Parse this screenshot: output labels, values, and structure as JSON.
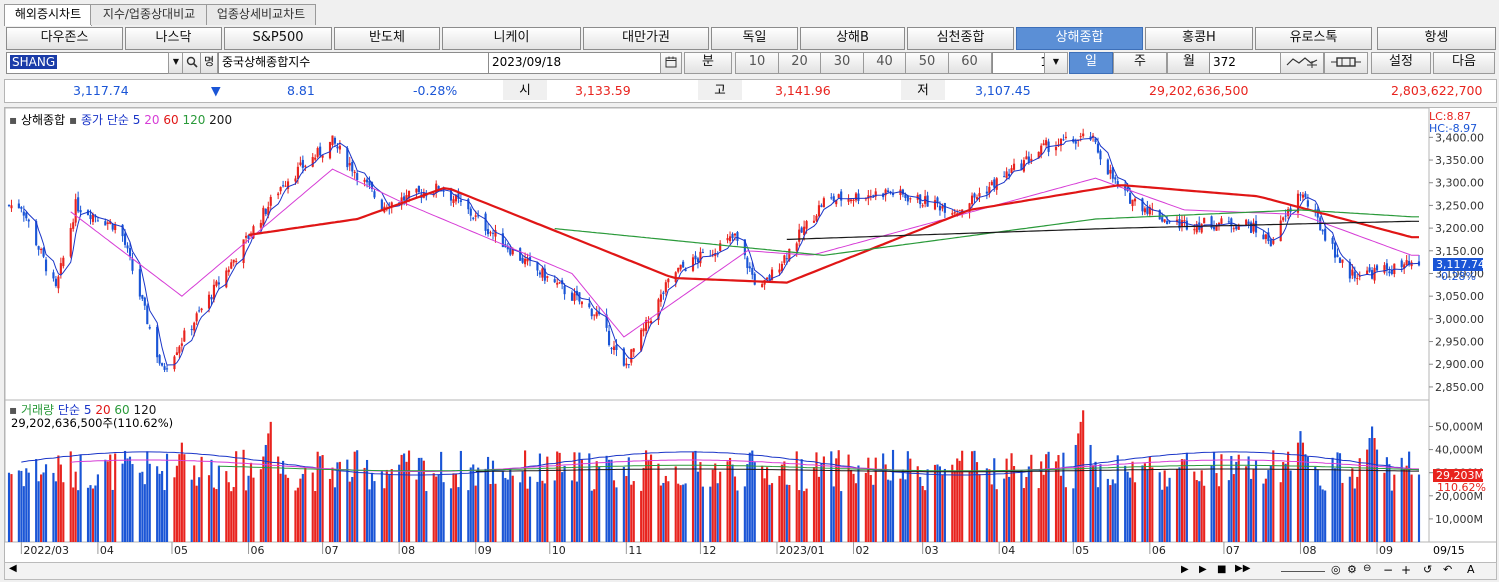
{
  "tabs": [
    "해외증시차트",
    "지수/업종상대비교",
    "업종상세비교차트"
  ],
  "index_buttons": [
    "다우존스",
    "나스닥",
    "S&P500",
    "반도체",
    "니케이",
    "대만가권",
    "독일",
    "상해B",
    "심천종합",
    "상해종합",
    "홍콩H",
    "유로스톡",
    "항셍"
  ],
  "active_index": "상해종합",
  "toolbar": {
    "symbol": "SHANG",
    "name_icon_label": "명",
    "name": "중국상해종합지수",
    "date": "2023/09/18",
    "period_unit_label": "분",
    "minute_options": [
      "10",
      "20",
      "30",
      "40",
      "50",
      "60"
    ],
    "minute_count": "1",
    "day_label": "일",
    "week_label": "주",
    "month_label": "월",
    "bar_count": "372",
    "settings_label": "설정",
    "next_label": "다음"
  },
  "quote": {
    "price": "3,117.74",
    "change_arrow": "▼",
    "change": "8.81",
    "change_pct": "-0.28%",
    "open_label": "시",
    "open": "3,133.59",
    "high_label": "고",
    "high": "3,141.96",
    "low_label": "저",
    "low": "3,107.45",
    "volume": "29,202,636,500",
    "amount": "2,803,622,700"
  },
  "price_legend": {
    "series_name": "상해종합",
    "ma_label": "종가 단순",
    "ma_periods": [
      "5",
      "20",
      "60",
      "120",
      "200"
    ]
  },
  "price_overlay": {
    "lc": "LC:8.87",
    "hc": "HC:-8.97",
    "last": "3,117.74",
    "last_pct": "-0.28%"
  },
  "volume_legend": {
    "series_name": "거래량",
    "ma_label": "단순",
    "ma_periods": [
      "5",
      "20",
      "60",
      "120"
    ],
    "info": "29,202,636,500주(110.62%)"
  },
  "volume_overlay": {
    "last": "29,203M",
    "last_pct": "110.62%"
  },
  "colors": {
    "up": "#e8231e",
    "down": "#1a55d6",
    "ma5": "#1a35c8",
    "ma20": "#d63cd6",
    "ma60": "#e01616",
    "ma120": "#2a9a3a",
    "ma200": "#1a1a1a",
    "active": "#5b8fd6"
  },
  "chart_data": {
    "type": "candlestick",
    "price_axis": {
      "ticks": [
        "3,400.00",
        "3,350.00",
        "3,300.00",
        "3,250.00",
        "3,200.00",
        "3,150.00",
        "3,100.00",
        "3,050.00",
        "3,000.00",
        "2,950.00",
        "2,900.00",
        "2,850.00"
      ],
      "range": [
        2830,
        3425
      ]
    },
    "volume_axis": {
      "ticks": [
        "50,000M",
        "40,000M",
        "30,000M",
        "20,000M",
        "10,000M"
      ],
      "range": [
        0,
        58000
      ]
    },
    "x_labels": [
      "2022/03",
      "04",
      "05",
      "06",
      "07",
      "08",
      "09",
      "10",
      "11",
      "12",
      "2023/01",
      "02",
      "03",
      "04",
      "05",
      "06",
      "07",
      "08",
      "09"
    ],
    "date_label": "09/15",
    "close_anchors": [
      [
        "2022-03-01",
        3250
      ],
      [
        "2022-03-15",
        3063
      ],
      [
        "2022-03-23",
        3250
      ],
      [
        "2022-04-10",
        3200
      ],
      [
        "2022-04-27",
        2886
      ],
      [
        "2022-05-20",
        3080
      ],
      [
        "2022-06-15",
        3300
      ],
      [
        "2022-07-05",
        3390
      ],
      [
        "2022-07-25",
        3250
      ],
      [
        "2022-08-18",
        3290
      ],
      [
        "2022-09-20",
        3130
      ],
      [
        "2022-10-20",
        3010
      ],
      [
        "2022-10-31",
        2890
      ],
      [
        "2022-11-20",
        3100
      ],
      [
        "2022-12-15",
        3180
      ],
      [
        "2022-12-25",
        3060
      ],
      [
        "2023-01-20",
        3260
      ],
      [
        "2023-02-15",
        3280
      ],
      [
        "2023-03-15",
        3240
      ],
      [
        "2023-04-20",
        3380
      ],
      [
        "2023-05-08",
        3400
      ],
      [
        "2023-05-20",
        3280
      ],
      [
        "2023-06-10",
        3210
      ],
      [
        "2023-07-10",
        3210
      ],
      [
        "2023-07-20",
        3170
      ],
      [
        "2023-08-01",
        3280
      ],
      [
        "2023-08-20",
        3100
      ],
      [
        "2023-08-28",
        3100
      ],
      [
        "2023-09-15",
        3117.74
      ]
    ],
    "ma_anchors": {
      "ma20": [
        [
          "2022-03-20",
          3240
        ],
        [
          "2022-05-05",
          3050
        ],
        [
          "2022-07-05",
          3330
        ],
        [
          "2022-08-01",
          3260
        ],
        [
          "2022-10-10",
          3100
        ],
        [
          "2022-10-31",
          2960
        ],
        [
          "2022-12-20",
          3150
        ],
        [
          "2023-01-15",
          3140
        ],
        [
          "2023-05-10",
          3310
        ],
        [
          "2023-06-15",
          3240
        ],
        [
          "2023-08-01",
          3230
        ],
        [
          "2023-09-15",
          3140
        ]
      ],
      "ma60": [
        [
          "2022-06-01",
          3185
        ],
        [
          "2022-07-15",
          3220
        ],
        [
          "2022-08-20",
          3290
        ],
        [
          "2022-11-20",
          3090
        ],
        [
          "2023-01-05",
          3080
        ],
        [
          "2023-03-20",
          3240
        ],
        [
          "2023-05-20",
          3295
        ],
        [
          "2023-07-15",
          3270
        ],
        [
          "2023-09-15",
          3180
        ]
      ],
      "ma120": [
        [
          "2022-10-01",
          3200
        ],
        [
          "2023-01-20",
          3140
        ],
        [
          "2023-05-10",
          3220
        ],
        [
          "2023-08-01",
          3240
        ],
        [
          "2023-09-15",
          3225
        ]
      ],
      "ma200": [
        [
          "2023-01-05",
          3175
        ],
        [
          "2023-05-20",
          3200
        ],
        [
          "2023-09-15",
          3215
        ]
      ]
    },
    "volume_range": [
      22000,
      40000
    ],
    "volume_peaks": [
      [
        "2022-06-10",
        52000
      ],
      [
        "2022-05-05",
        43000
      ],
      [
        "2023-05-05",
        57000
      ],
      [
        "2023-08-01",
        48000
      ],
      [
        "2023-08-30",
        50000
      ],
      [
        "2023-09-15",
        29203
      ]
    ]
  }
}
